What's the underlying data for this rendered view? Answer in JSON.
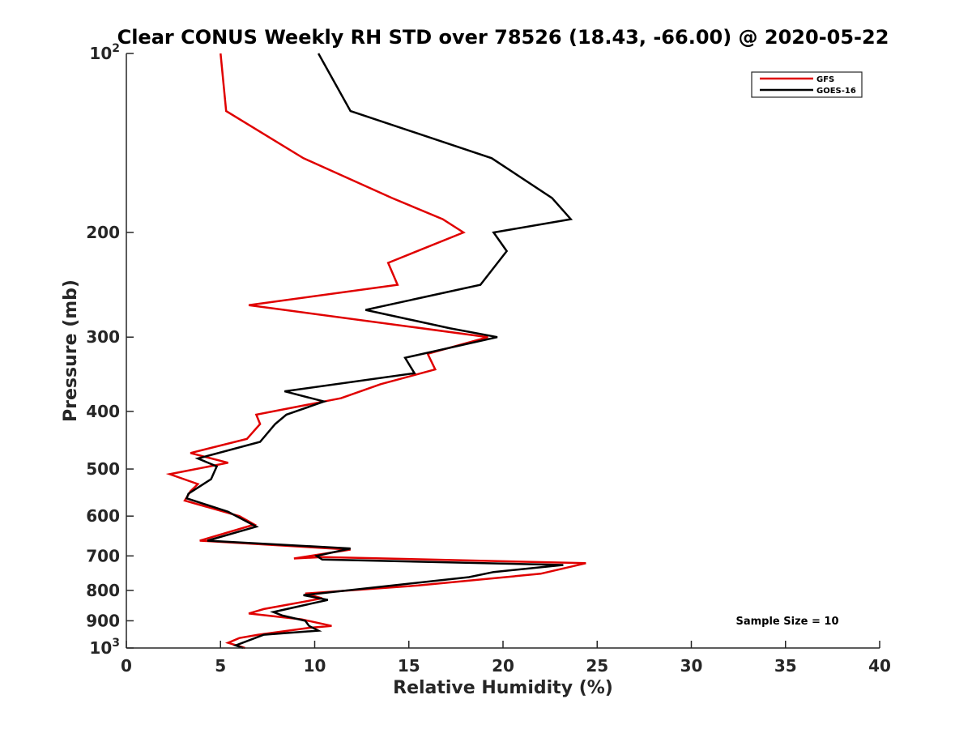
{
  "chart_data": {
    "type": "line",
    "title": "Clear CONUS Weekly RH STD over 78526 (18.43, -66.00) @ 2020-05-22",
    "xlabel": "Relative Humidity (%)",
    "ylabel": "Pressure (mb)",
    "xlim": [
      0,
      40
    ],
    "ylim": [
      100,
      1000
    ],
    "yscale": "log",
    "y_reversed": true,
    "grid": false,
    "legend_position": "top-right",
    "x_ticks": [
      {
        "value": 0,
        "label": "0"
      },
      {
        "value": 5,
        "label": "5"
      },
      {
        "value": 10,
        "label": "10"
      },
      {
        "value": 15,
        "label": "15"
      },
      {
        "value": 20,
        "label": "20"
      },
      {
        "value": 25,
        "label": "25"
      },
      {
        "value": 30,
        "label": "30"
      },
      {
        "value": 35,
        "label": "35"
      },
      {
        "value": 40,
        "label": "40"
      }
    ],
    "y_ticks": [
      {
        "value": 100,
        "base": "10",
        "exp": "2"
      },
      {
        "value": 200,
        "base": "200",
        "exp": ""
      },
      {
        "value": 300,
        "base": "300",
        "exp": ""
      },
      {
        "value": 400,
        "base": "400",
        "exp": ""
      },
      {
        "value": 500,
        "base": "500",
        "exp": ""
      },
      {
        "value": 600,
        "base": "600",
        "exp": ""
      },
      {
        "value": 700,
        "base": "700",
        "exp": ""
      },
      {
        "value": 800,
        "base": "800",
        "exp": ""
      },
      {
        "value": 900,
        "base": "900",
        "exp": ""
      },
      {
        "value": 1000,
        "base": "10",
        "exp": "3"
      }
    ],
    "annotation": "Sample Size = 10",
    "series": [
      {
        "name": "GFS",
        "color": "#e00000",
        "points": [
          [
            5.0,
            100
          ],
          [
            5.3,
            125
          ],
          [
            9.4,
            150
          ],
          [
            14.1,
            175
          ],
          [
            16.8,
            190
          ],
          [
            17.9,
            200
          ],
          [
            13.9,
            225
          ],
          [
            14.4,
            245
          ],
          [
            6.5,
            265
          ],
          [
            19.2,
            300
          ],
          [
            16.0,
            320
          ],
          [
            16.4,
            340
          ],
          [
            13.5,
            360
          ],
          [
            11.4,
            380
          ],
          [
            6.9,
            405
          ],
          [
            7.1,
            420
          ],
          [
            6.4,
            445
          ],
          [
            3.4,
            470
          ],
          [
            5.4,
            488
          ],
          [
            2.3,
            510
          ],
          [
            3.8,
            530
          ],
          [
            3.4,
            545
          ],
          [
            3.1,
            565
          ],
          [
            6.0,
            600
          ],
          [
            6.8,
            620
          ],
          [
            3.9,
            660
          ],
          [
            11.9,
            683
          ],
          [
            8.9,
            707
          ],
          [
            10.4,
            703
          ],
          [
            24.4,
            720
          ],
          [
            22.0,
            750
          ],
          [
            15.5,
            785
          ],
          [
            9.5,
            810
          ],
          [
            10.4,
            825
          ],
          [
            7.3,
            860
          ],
          [
            6.5,
            875
          ],
          [
            9.3,
            895
          ],
          [
            10.9,
            918
          ],
          [
            9.7,
            925
          ],
          [
            7.0,
            950
          ],
          [
            6.0,
            962
          ],
          [
            5.4,
            980
          ],
          [
            6.3,
            1000
          ]
        ]
      },
      {
        "name": "GOES-16",
        "color": "#000000",
        "points": [
          [
            10.2,
            100
          ],
          [
            11.9,
            125
          ],
          [
            19.4,
            150
          ],
          [
            22.6,
            175
          ],
          [
            23.6,
            190
          ],
          [
            19.5,
            200
          ],
          [
            20.2,
            215
          ],
          [
            18.8,
            245
          ],
          [
            12.7,
            270
          ],
          [
            17.2,
            290
          ],
          [
            19.7,
            300
          ],
          [
            14.8,
            325
          ],
          [
            15.3,
            345
          ],
          [
            8.4,
            370
          ],
          [
            10.5,
            385
          ],
          [
            8.5,
            405
          ],
          [
            7.9,
            420
          ],
          [
            7.1,
            450
          ],
          [
            3.8,
            480
          ],
          [
            4.8,
            495
          ],
          [
            4.5,
            520
          ],
          [
            3.3,
            550
          ],
          [
            3.2,
            560
          ],
          [
            5.4,
            590
          ],
          [
            6.9,
            625
          ],
          [
            4.3,
            660
          ],
          [
            11.9,
            680
          ],
          [
            10.1,
            700
          ],
          [
            10.4,
            710
          ],
          [
            23.2,
            725
          ],
          [
            19.5,
            745
          ],
          [
            18.2,
            760
          ],
          [
            9.4,
            815
          ],
          [
            10.7,
            830
          ],
          [
            7.8,
            870
          ],
          [
            8.3,
            882
          ],
          [
            9.5,
            900
          ],
          [
            9.7,
            918
          ],
          [
            10.2,
            935
          ],
          [
            7.3,
            950
          ],
          [
            5.8,
            990
          ],
          [
            6.2,
            1000
          ]
        ]
      }
    ]
  }
}
